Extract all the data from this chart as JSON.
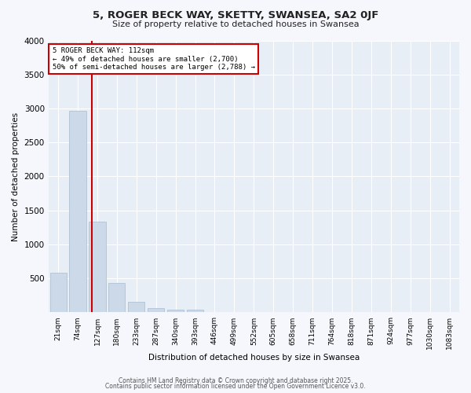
{
  "title": "5, ROGER BECK WAY, SKETTY, SWANSEA, SA2 0JF",
  "subtitle": "Size of property relative to detached houses in Swansea",
  "xlabel": "Distribution of detached houses by size in Swansea",
  "ylabel": "Number of detached properties",
  "bar_color": "#ccd9e8",
  "bar_edge_color": "#aabcce",
  "background_color": "#e8eef6",
  "grid_color": "#ffffff",
  "fig_background": "#f5f7fc",
  "categories": [
    "21sqm",
    "74sqm",
    "127sqm",
    "180sqm",
    "233sqm",
    "287sqm",
    "340sqm",
    "393sqm",
    "446sqm",
    "499sqm",
    "552sqm",
    "605sqm",
    "658sqm",
    "711sqm",
    "764sqm",
    "818sqm",
    "871sqm",
    "924sqm",
    "977sqm",
    "1030sqm",
    "1083sqm"
  ],
  "values": [
    580,
    2970,
    1340,
    430,
    160,
    65,
    40,
    40,
    5,
    0,
    0,
    0,
    0,
    0,
    0,
    0,
    0,
    0,
    0,
    0,
    0
  ],
  "annotation_title": "5 ROGER BECK WAY: 112sqm",
  "annotation_line1": "← 49% of detached houses are smaller (2,700)",
  "annotation_line2": "50% of semi-detached houses are larger (2,788) →",
  "annotation_box_color": "#ffffff",
  "annotation_border_color": "#cc0000",
  "red_line_color": "#cc0000",
  "ylim": [
    0,
    4000
  ],
  "yticks": [
    0,
    500,
    1000,
    1500,
    2000,
    2500,
    3000,
    3500,
    4000
  ],
  "footer1": "Contains HM Land Registry data © Crown copyright and database right 2025.",
  "footer2": "Contains public sector information licensed under the Open Government Licence v3.0."
}
